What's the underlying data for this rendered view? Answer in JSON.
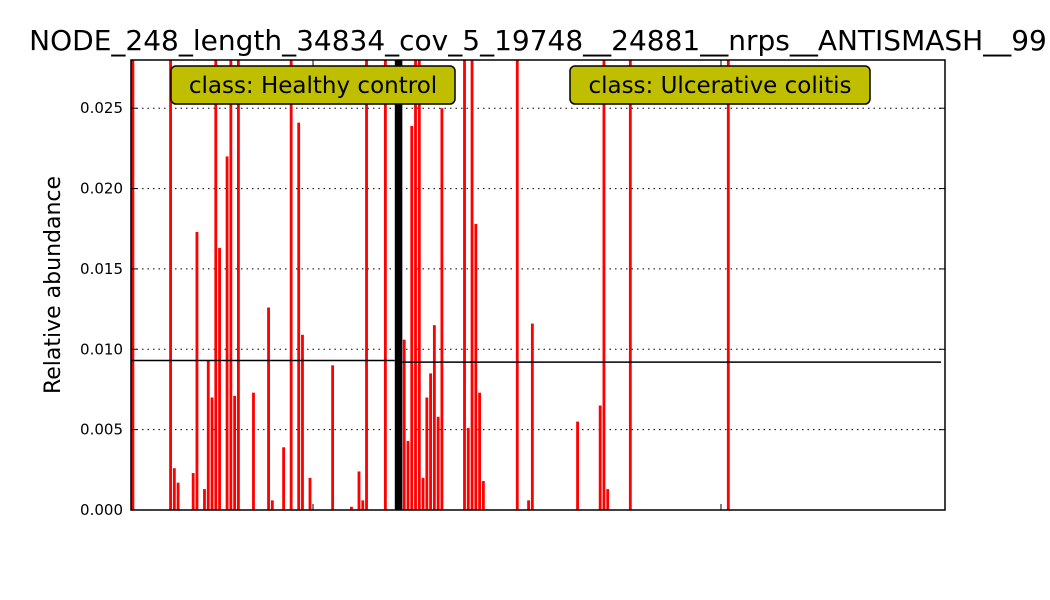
{
  "chart_data": {
    "type": "bar",
    "title": "NODE_248_length_34834_cov_5_19748__24881__nrps__ANTISMASH__99",
    "xlabel": "",
    "ylabel": "Relative abundance",
    "ylim": [
      0,
      0.028
    ],
    "yticks": [
      "0.000",
      "0.005",
      "0.010",
      "0.015",
      "0.020",
      "0.025"
    ],
    "grid": "y-dotted",
    "bar_color": "#ff0000",
    "separator_color": "#000000",
    "groups": [
      {
        "label": "class: Healthy control",
        "mean": 0.0093,
        "values": [
          0.028,
          0,
          0,
          0,
          0,
          0,
          0,
          0,
          0,
          0,
          0.028,
          0.0026,
          0.0017,
          0,
          0,
          0,
          0.0023,
          0.0173,
          0,
          0.0013,
          0.0093,
          0.007,
          0.028,
          0.0163,
          0,
          0.022,
          0.028,
          0.0071,
          0.028,
          0,
          0,
          0,
          0.0073,
          0,
          0,
          0,
          0.0126,
          0.0006,
          0,
          0,
          0.0039,
          0,
          0.028,
          0,
          0.0241,
          0.0109,
          0,
          0.002,
          0,
          0,
          0,
          0,
          0,
          0.009,
          0,
          0,
          0,
          0,
          0.0002,
          0,
          0.0024,
          0.0006,
          0.028,
          0,
          0,
          0,
          0,
          0.028,
          0,
          0
        ]
      },
      {
        "label": "class: Ulcerative colitis",
        "mean": 0.0092,
        "values": [
          0.0106,
          0.0043,
          0.0239,
          0.028,
          0.028,
          0.002,
          0.007,
          0.0085,
          0.0115,
          0.0058,
          0.025,
          0,
          0,
          0,
          0,
          0,
          0.028,
          0.0051,
          0.028,
          0.0178,
          0.0073,
          0.0018,
          0,
          0,
          0,
          0,
          0,
          0,
          0,
          0,
          0.028,
          0,
          0,
          0.0006,
          0.0116,
          0,
          0,
          0,
          0,
          0,
          0,
          0,
          0,
          0,
          0,
          0,
          0.0055,
          0,
          0,
          0,
          0,
          0,
          0.0065,
          0.028,
          0.0013,
          0,
          0,
          0,
          0,
          0,
          0.028,
          0,
          0,
          0,
          0,
          0,
          0,
          0,
          0,
          0,
          0,
          0,
          0,
          0,
          0,
          0,
          0,
          0,
          0,
          0,
          0,
          0,
          0,
          0,
          0,
          0,
          0.028,
          0,
          0,
          0,
          0,
          0,
          0,
          0,
          0,
          0,
          0,
          0,
          0,
          0,
          0,
          0,
          0,
          0,
          0,
          0,
          0,
          0,
          0,
          0,
          0,
          0,
          0,
          0,
          0,
          0,
          0,
          0,
          0,
          0,
          0,
          0,
          0,
          0,
          0,
          0,
          0,
          0,
          0,
          0,
          0,
          0,
          0,
          0,
          0,
          0,
          0,
          0,
          0,
          0,
          0,
          0,
          0,
          0
        ]
      }
    ],
    "class_label_bg": "#bfbf00"
  }
}
